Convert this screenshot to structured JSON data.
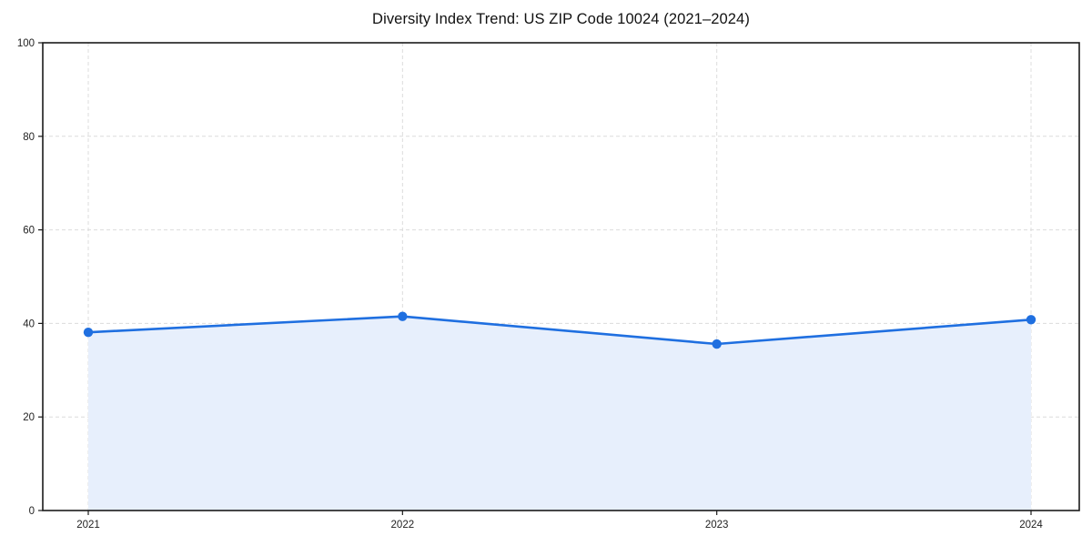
{
  "chart_data": {
    "type": "area",
    "title": "Diversity Index Trend: US ZIP Code 10024 (2021–2024)",
    "categories": [
      "2021",
      "2022",
      "2023",
      "2024"
    ],
    "series": [
      {
        "name": "Diversity Index",
        "values": [
          38.1,
          41.5,
          35.6,
          40.8
        ]
      }
    ],
    "xlabel": "",
    "ylabel": "",
    "ylim": [
      0,
      100
    ],
    "yticks": [
      0,
      20,
      40,
      60,
      80,
      100
    ],
    "grid": "dashed, both axes",
    "legend": "none",
    "colors": {
      "line": "#1f6fe0",
      "marker": "#1f6fe0",
      "area_fill": "#e7effc",
      "gridline": "#dcdcdc",
      "plot_border": "#1a1a1a",
      "tick_text": "#222222",
      "background": "#ffffff"
    }
  }
}
